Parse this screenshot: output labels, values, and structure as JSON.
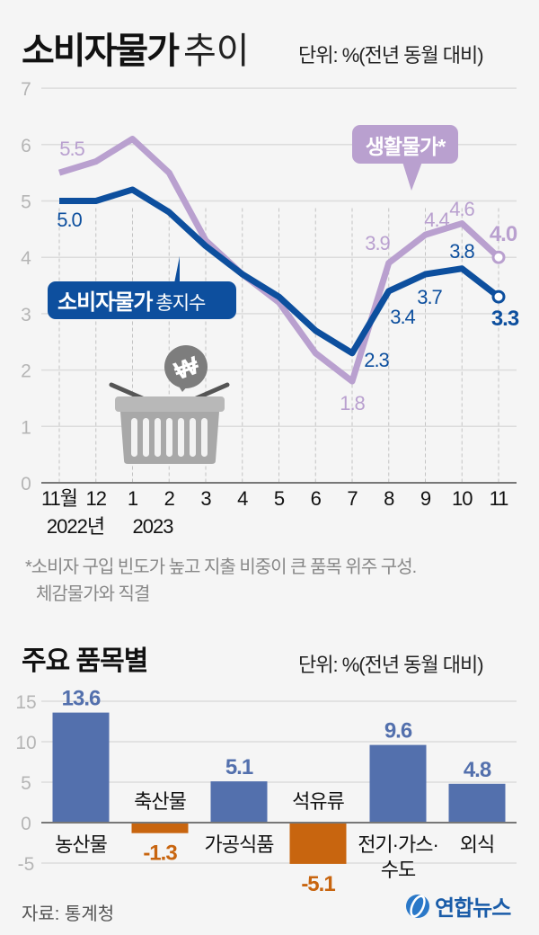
{
  "header": {
    "title_bold": "소비자물가",
    "title_light": "추이",
    "unit": "단위: %(전년 동월 대비)"
  },
  "line_chart": {
    "y_ticks": [
      "0",
      "1",
      "2",
      "3",
      "4",
      "5",
      "6",
      "7"
    ],
    "x_ticks": [
      "11월",
      "12",
      "1",
      "2",
      "3",
      "4",
      "5",
      "6",
      "7",
      "8",
      "9",
      "10",
      "11"
    ],
    "year_labels": [
      "2022년",
      "2023"
    ],
    "callout_cpi_bold": "소비자물가",
    "callout_cpi_light": "총지수",
    "callout_living": "생활물가*"
  },
  "footnote": {
    "line1": "*소비자 구입 빈도가 높고 지출 비중이 큰 품목 위주 구성.",
    "line2": "체감물가와 직결"
  },
  "section2": {
    "title": "주요 품목별",
    "unit": "단위: %(전년 동월 대비)",
    "y_ticks": [
      "15",
      "10",
      "5",
      "0",
      "-5"
    ]
  },
  "source": "자료: 통계청",
  "logo": {
    "text": "연합뉴스",
    "icon": "yonhap-globe-icon"
  },
  "colors": {
    "cpi": "#0d4f9e",
    "living": "#b9a0cf",
    "bar_pos": "#5370ad",
    "bar_neg": "#c8650f",
    "grid": "#dcdcdc"
  },
  "chart_data": [
    {
      "type": "line",
      "title": "소비자물가 추이",
      "ylabel": "단위: %(전년 동월 대비)",
      "xlabel": "",
      "x": [
        "2022-11",
        "2022-12",
        "2023-01",
        "2023-02",
        "2023-03",
        "2023-04",
        "2023-05",
        "2023-06",
        "2023-07",
        "2023-08",
        "2023-09",
        "2023-10",
        "2023-11"
      ],
      "ylim": [
        0,
        7
      ],
      "grid": true,
      "series": [
        {
          "name": "소비자물가 총지수",
          "values": [
            5.0,
            5.0,
            5.2,
            4.8,
            4.2,
            3.7,
            3.3,
            2.7,
            2.3,
            3.4,
            3.7,
            3.8,
            3.3
          ],
          "labels": {
            "2022-11": "5.0",
            "2023-07": "2.3",
            "2023-08": "3.4",
            "2023-09": "3.7",
            "2023-10": "3.8",
            "2023-11": "3.3"
          }
        },
        {
          "name": "생활물가*",
          "values": [
            5.5,
            5.7,
            6.1,
            5.5,
            4.3,
            3.7,
            3.2,
            2.3,
            1.8,
            3.9,
            4.4,
            4.6,
            4.0
          ],
          "labels": {
            "2022-11": "5.5",
            "2023-07": "1.8",
            "2023-08": "3.9",
            "2023-09": "4.4",
            "2023-10": "4.6",
            "2023-11": "4.0"
          }
        }
      ],
      "annotations": [
        "*소비자 구입 빈도가 높고 지출 비중이 큰 품목 위주 구성. 체감물가와 직결"
      ]
    },
    {
      "type": "bar",
      "title": "주요 품목별",
      "ylabel": "단위: %(전년 동월 대비)",
      "categories": [
        "농산물",
        "축산물",
        "가공식품",
        "석유류",
        "전기·가스·수도",
        "외식"
      ],
      "values": [
        13.6,
        -1.3,
        5.1,
        -5.1,
        9.6,
        4.8
      ],
      "ylim": [
        -5,
        15
      ],
      "grid": true
    }
  ]
}
